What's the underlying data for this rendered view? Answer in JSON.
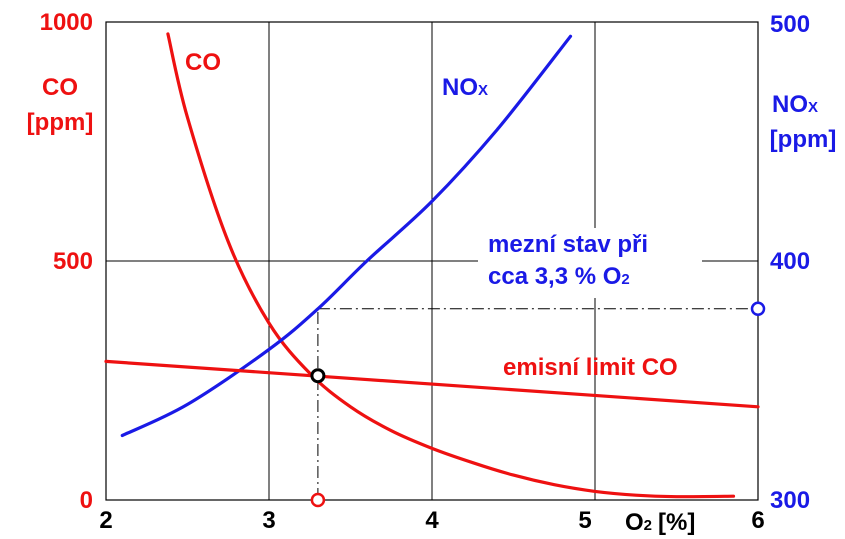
{
  "chart_data": {
    "type": "line",
    "x": {
      "label": "O",
      "label_sub": "2",
      "label_unit": "[%]",
      "lim": [
        2,
        6
      ],
      "ticks": [
        "2",
        "3",
        "4",
        "5",
        "6"
      ]
    },
    "y_left": {
      "label_line1": "CO",
      "label_line2": "[ppm]",
      "lim": [
        0,
        1000
      ],
      "ticks": [
        "0",
        "500",
        "1000"
      ],
      "color": "#ee1111"
    },
    "y_right": {
      "label_line1": "NO",
      "label_line1_sub": "X",
      "label_line2": "[ppm]",
      "lim": [
        300,
        500
      ],
      "ticks": [
        "300",
        "400",
        "500"
      ],
      "color": "#1a1ae6"
    },
    "grid": true,
    "series": [
      {
        "name": "CO",
        "axis": "left",
        "color": "#ee1111",
        "x": [
          2.38,
          2.5,
          2.75,
          3.0,
          3.25,
          3.5,
          3.75,
          4.0,
          4.25,
          4.5,
          4.75,
          5.0,
          5.25,
          5.5,
          5.85
        ],
        "y": [
          975,
          800,
          540,
          370,
          265,
          195,
          145,
          108,
          78,
          52,
          32,
          18,
          10,
          7,
          8
        ]
      },
      {
        "name": "NO",
        "name_sub": "X",
        "axis": "right",
        "color": "#1a1ae6",
        "x": [
          2.1,
          2.5,
          3.0,
          3.3,
          3.6,
          4.0,
          4.4,
          4.85
        ],
        "y": [
          327,
          340,
          363,
          380,
          400,
          425,
          455,
          494
        ]
      },
      {
        "name": "emisní limit CO",
        "axis": "left",
        "color": "#ee1111",
        "x": [
          2.0,
          6.0
        ],
        "y": [
          290,
          195
        ]
      }
    ],
    "annotation": {
      "line1": "mezní stav při",
      "line2_text": "cca 3,3 % O",
      "line2_sub": "2",
      "x": 3.3,
      "co_value": 260,
      "nox_value": 380,
      "color": "#1a1ae6"
    }
  }
}
